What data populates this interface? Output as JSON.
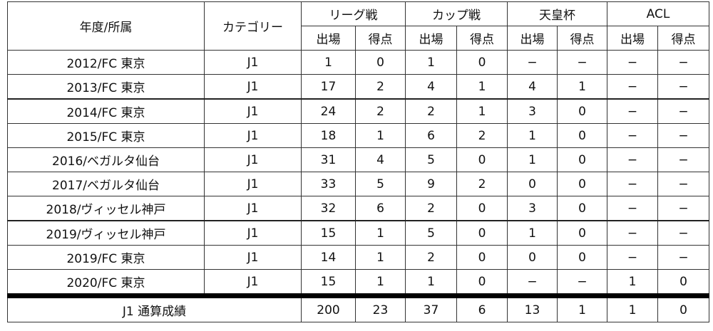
{
  "headers": {
    "year_club": "年度/所属",
    "category": "カテゴリー",
    "league": "リーグ戦",
    "cup": "カップ戦",
    "emperor": "天皇杯",
    "acl": "ACL",
    "apps": "出場",
    "goals": "得点"
  },
  "rows": [
    [
      "2012/FC 東京",
      "J1",
      "1",
      "0",
      "1",
      "0",
      "−",
      "−",
      "−",
      "−"
    ],
    [
      "2013/FC 東京",
      "J1",
      "17",
      "2",
      "4",
      "1",
      "4",
      "1",
      "−",
      "−"
    ],
    [
      "2014/FC 東京",
      "J1",
      "24",
      "2",
      "2",
      "1",
      "3",
      "0",
      "−",
      "−"
    ],
    [
      "2015/FC 東京",
      "J1",
      "18",
      "1",
      "6",
      "2",
      "1",
      "0",
      "−",
      "−"
    ],
    [
      "2016/ベガルタ仙台",
      "J1",
      "31",
      "4",
      "5",
      "0",
      "1",
      "0",
      "−",
      "−"
    ],
    [
      "2017/ベガルタ仙台",
      "J1",
      "33",
      "5",
      "9",
      "2",
      "0",
      "0",
      "−",
      "−"
    ],
    [
      "2018/ヴィッセル神戸",
      "J1",
      "32",
      "6",
      "2",
      "0",
      "3",
      "0",
      "−",
      "−"
    ],
    [
      "2019/ヴィッセル神戸",
      "J1",
      "15",
      "1",
      "5",
      "0",
      "1",
      "0",
      "−",
      "−"
    ],
    [
      "2019/FC 東京",
      "J1",
      "14",
      "1",
      "2",
      "0",
      "0",
      "0",
      "−",
      "−"
    ],
    [
      "2020/FC 東京",
      "J1",
      "15",
      "1",
      "1",
      "0",
      "−",
      "−",
      "1",
      "0"
    ]
  ],
  "total": {
    "label": "J1 通算成績",
    "values": [
      "200",
      "23",
      "37",
      "6",
      "13",
      "1",
      "1",
      "0"
    ]
  }
}
